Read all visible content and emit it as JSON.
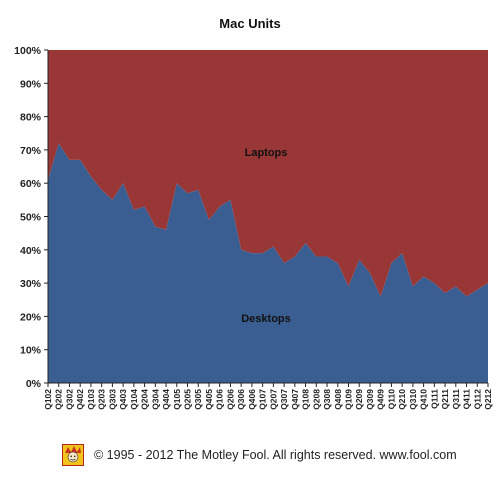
{
  "chart_data": {
    "type": "area",
    "title": "Mac Units",
    "xlabel": "",
    "ylabel": "",
    "ylim": [
      0,
      100
    ],
    "yticks": [
      "0%",
      "10%",
      "20%",
      "30%",
      "40%",
      "50%",
      "60%",
      "70%",
      "80%",
      "90%",
      "100%"
    ],
    "stacked_percent": true,
    "grid": false,
    "categories": [
      "Q102",
      "Q202",
      "Q302",
      "Q402",
      "Q103",
      "Q203",
      "Q303",
      "Q403",
      "Q104",
      "Q204",
      "Q304",
      "Q404",
      "Q105",
      "Q205",
      "Q305",
      "Q405",
      "Q106",
      "Q206",
      "Q306",
      "Q406",
      "Q107",
      "Q207",
      "Q307",
      "Q407",
      "Q108",
      "Q208",
      "Q308",
      "Q408",
      "Q109",
      "Q209",
      "Q309",
      "Q409",
      "Q110",
      "Q210",
      "Q310",
      "Q410",
      "Q111",
      "Q211",
      "Q311",
      "Q411",
      "Q112",
      "Q212"
    ],
    "series": [
      {
        "name": "Desktops",
        "color": "#3a5e91",
        "values": [
          61,
          72,
          67,
          67,
          62,
          58,
          55,
          60,
          52,
          53,
          47,
          46,
          60,
          57,
          58,
          49,
          53,
          55,
          40,
          39,
          39,
          41,
          36,
          38,
          42,
          38,
          38,
          36,
          29,
          37,
          33,
          26,
          36,
          39,
          29,
          32,
          30,
          27,
          29,
          26,
          28,
          30
        ]
      },
      {
        "name": "Laptops",
        "color": "#993737",
        "values": [
          39,
          28,
          33,
          33,
          38,
          42,
          45,
          40,
          48,
          47,
          53,
          54,
          40,
          43,
          42,
          51,
          47,
          45,
          60,
          61,
          61,
          59,
          64,
          62,
          58,
          62,
          62,
          64,
          71,
          63,
          67,
          74,
          64,
          61,
          71,
          68,
          70,
          73,
          71,
          74,
          72,
          70
        ]
      }
    ]
  },
  "footer": {
    "copyright": "© 1995 - 2012 The Motley Fool. All rights reserved. www.fool.com",
    "logo_icon": "motley-fool-jester-icon"
  }
}
